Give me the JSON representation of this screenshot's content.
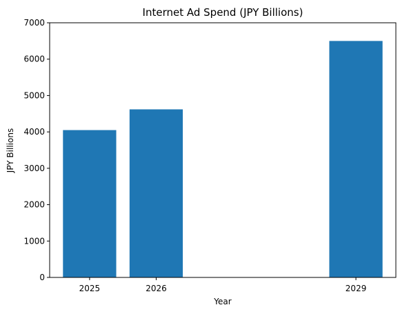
{
  "chart_data": {
    "type": "bar",
    "title": "Internet Ad Spend (JPY Billions)",
    "xlabel": "Year",
    "ylabel": "JPY Billions",
    "x": [
      2025,
      2026,
      2029
    ],
    "values": [
      4050,
      4620,
      6500
    ],
    "xlim": [
      2024.4,
      2029.6
    ],
    "ylim": [
      0,
      7000
    ],
    "yticks": [
      0,
      1000,
      2000,
      3000,
      4000,
      5000,
      6000,
      7000
    ],
    "xticks": [
      2025,
      2026,
      2029
    ],
    "bar_width_years": 0.8,
    "grid": false,
    "bar_color": "#1f77b4"
  }
}
